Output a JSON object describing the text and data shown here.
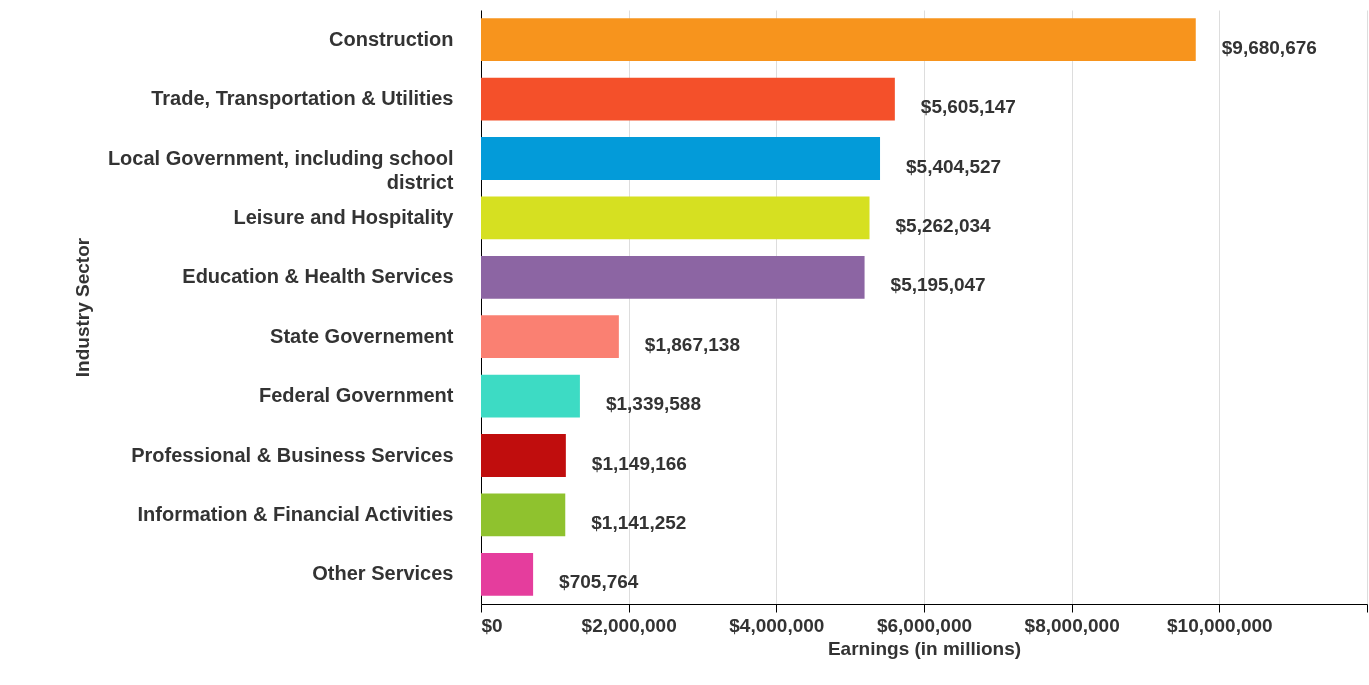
{
  "chart_data": {
    "type": "bar",
    "orientation": "horizontal",
    "xlabel": "Earnings (in millions)",
    "ylabel": "Industry Sector",
    "categories": [
      "Construction",
      "Trade, Transportation & Utilities",
      "Local Government, including school district",
      "Leisure and Hospitality",
      "Education & Health Services",
      "State Governement",
      "Federal Government",
      "Professional & Business Services",
      "Information & Financial Activities",
      "Other Services"
    ],
    "values": [
      9680676,
      5605147,
      5404527,
      5262034,
      5195047,
      1867138,
      1339588,
      1149166,
      1141252,
      705764
    ],
    "colors": [
      "#f7941d",
      "#f4502a",
      "#039bd9",
      "#d6e021",
      "#8c65a3",
      "#fa8072",
      "#3ddbc4",
      "#c00d0d",
      "#8fc22e",
      "#e53d9d"
    ],
    "xlim": [
      0,
      12000000
    ],
    "xticks": [
      {
        "value": 0,
        "label": "$0"
      },
      {
        "value": 2000000,
        "label": "$2,000,000"
      },
      {
        "value": 4000000,
        "label": "$4,000,000"
      },
      {
        "value": 6000000,
        "label": "$6,000,000"
      },
      {
        "value": 8000000,
        "label": "$8,000,000"
      },
      {
        "value": 10000000,
        "label": "$10,000,000"
      },
      {
        "value": 12000000,
        "label": null
      }
    ],
    "value_labels": [
      "$9,680,676",
      "$5,605,147",
      "$5,404,527",
      "$5,262,034",
      "$5,195,047",
      "$1,867,138",
      "$1,339,588",
      "$1,149,166",
      "$1,141,252",
      "$705,764"
    ],
    "grid": "x"
  }
}
